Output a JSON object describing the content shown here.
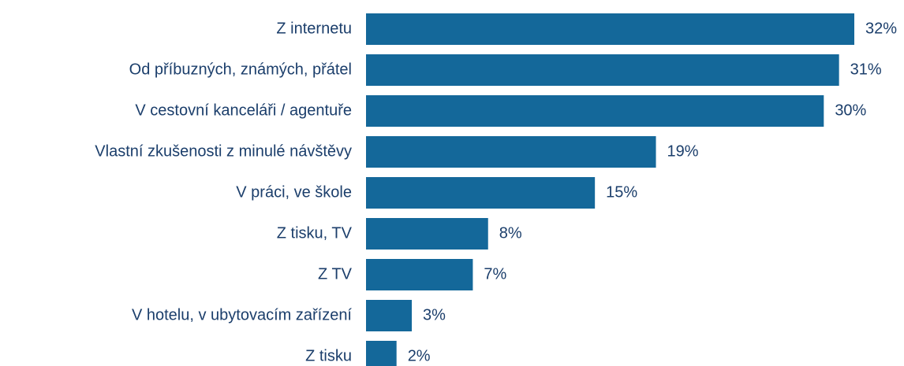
{
  "chart_data": {
    "type": "bar",
    "orientation": "horizontal",
    "categories": [
      "Z internetu",
      "Od příbuzných, známých, přátel",
      "V cestovní kanceláři / agentuře",
      "Vlastní zkušenosti z minulé návštěvy",
      "V práci, ve škole",
      "Z tisku, TV",
      "Z TV",
      "V hotelu, v ubytovacím zařízení",
      "Z tisku"
    ],
    "values": [
      32,
      31,
      30,
      19,
      15,
      8,
      7,
      3,
      2
    ],
    "value_labels": [
      "32%",
      "31%",
      "30%",
      "19%",
      "15%",
      "8%",
      "7%",
      "3%",
      "2%"
    ],
    "color": "#14689a"
  }
}
